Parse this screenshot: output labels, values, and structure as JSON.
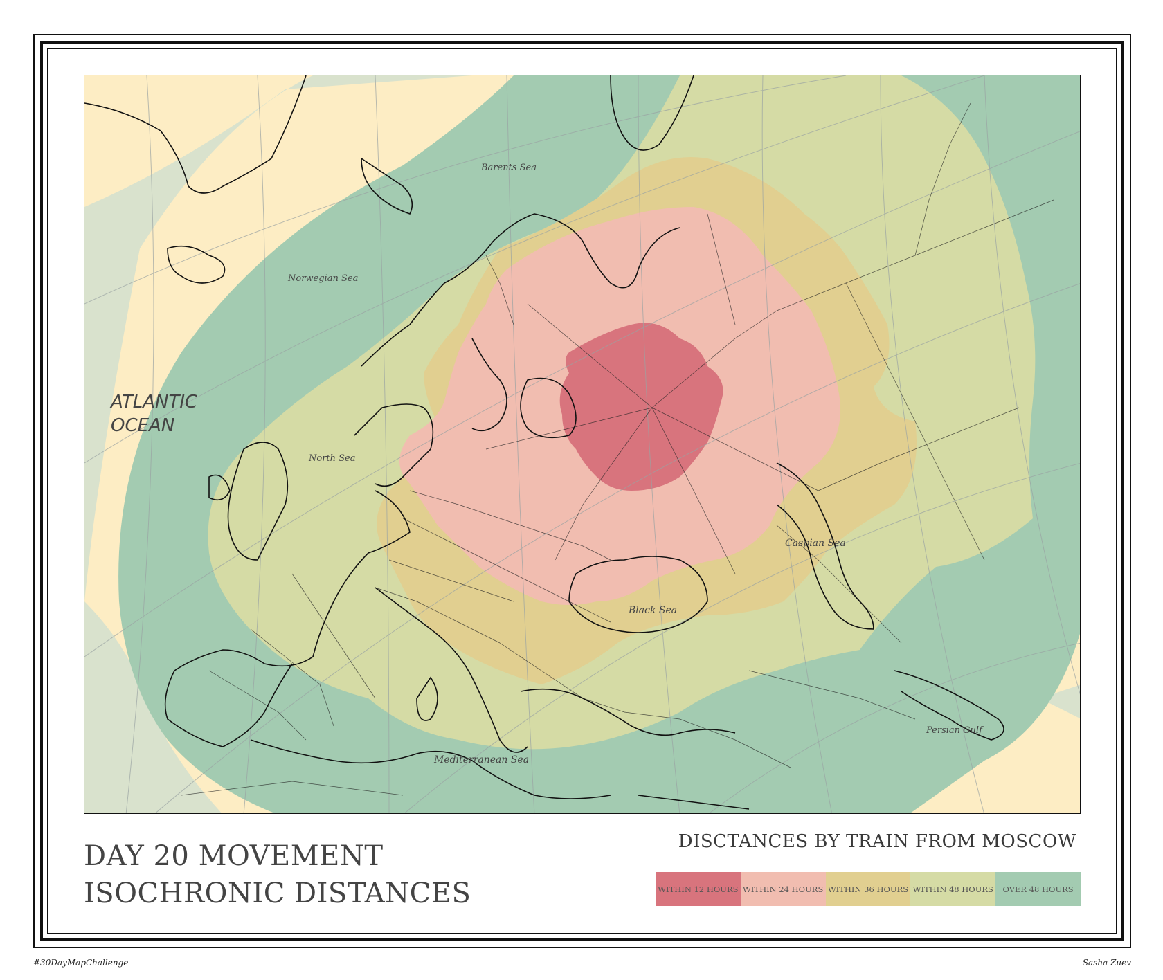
{
  "map": {
    "labels": {
      "atlantic_line1": "ATLANTIC",
      "atlantic_line2": "OCEAN",
      "barents": "Barents Sea",
      "norwegian": "Norwegian Sea",
      "north": "North Sea",
      "caspian": "Caspian Sea",
      "black": "Black Sea",
      "mediterranean": "Mediterranean Sea",
      "persian": "Persian Gulf"
    },
    "colors": {
      "land_base": "#fdedc4",
      "sea_far": "#d9e2cd",
      "over_48": "#a3cbb1",
      "within_48": "#d5dba5",
      "within_36": "#e1cf90",
      "within_24": "#f1bdb0",
      "within_12": "#d8747d",
      "coast": "#111111",
      "rail": "#222222",
      "graticule": "#9aa3a3"
    }
  },
  "title": {
    "line1": "DAY 20 MOVEMENT",
    "line2": "ISOCHRONIC DISTANCES"
  },
  "legend": {
    "title": "DISCTANCES BY TRAIN FROM MOSCOW",
    "items": [
      {
        "label": "WITHIN 12 HOURS",
        "color": "#d8747d"
      },
      {
        "label": "WITHIN 24 HOURS",
        "color": "#f1bdb0"
      },
      {
        "label": "WITHIN 36 HOURS",
        "color": "#e1cf90"
      },
      {
        "label": "WITHIN 48 HOURS",
        "color": "#d5dba5"
      },
      {
        "label": "OVER 48 HOURS",
        "color": "#a3cbb1"
      }
    ]
  },
  "footer": {
    "hashtag": "#30DayMapChallenge",
    "author": "Sasha Zuev"
  }
}
